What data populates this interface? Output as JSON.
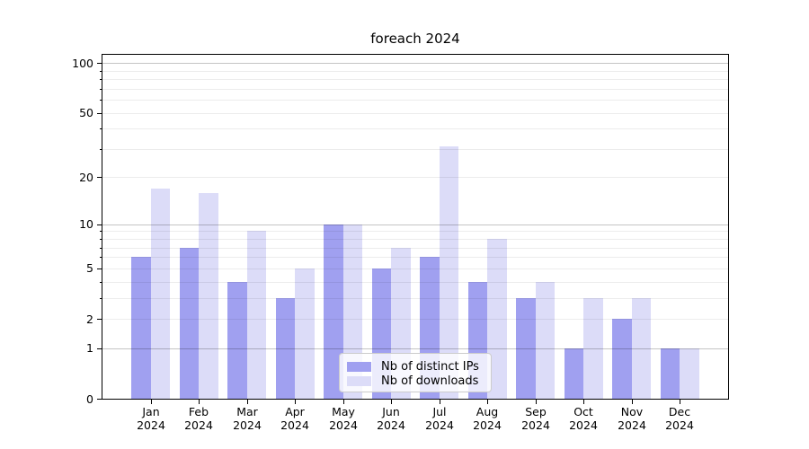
{
  "chart_data": {
    "type": "bar",
    "title": "foreach 2024",
    "months": [
      "Jan",
      "Feb",
      "Mar",
      "Apr",
      "May",
      "Jun",
      "Jul",
      "Aug",
      "Sep",
      "Oct",
      "Nov",
      "Dec"
    ],
    "year": "2024",
    "series": [
      {
        "name": "Nb of distinct IPs",
        "color": "#a0a0f0",
        "key": "ips",
        "values": [
          6,
          7,
          4,
          3,
          10,
          5,
          6,
          4,
          3,
          1,
          2,
          1
        ]
      },
      {
        "name": "Nb of downloads",
        "color": "#dcdcf8",
        "key": "downloads",
        "values": [
          17,
          16,
          9,
          5,
          10,
          7,
          31,
          8,
          4,
          3,
          3,
          1
        ]
      }
    ],
    "yscale": "log1p",
    "ylim": [
      0,
      100
    ],
    "ytick_values": [
      0,
      1,
      2,
      5,
      10,
      20,
      50,
      100
    ],
    "ytick_labels": [
      "0",
      "1",
      "2",
      "5",
      "10",
      "20",
      "50",
      "100"
    ],
    "y_major_gridlines": [
      1,
      10,
      100
    ],
    "y_minor_gridlines": [
      2,
      3,
      4,
      5,
      6,
      7,
      8,
      9,
      20,
      30,
      40,
      50,
      60,
      70,
      80,
      90
    ],
    "grid": true,
    "legend_position": "lower center",
    "background_color": "#ffffff"
  }
}
